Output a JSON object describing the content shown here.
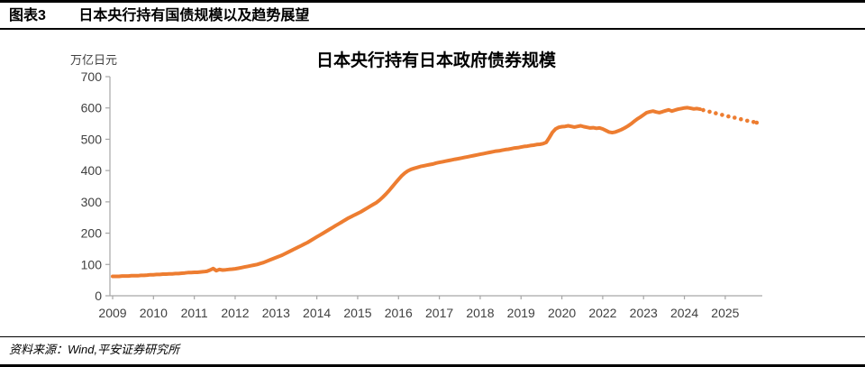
{
  "header": {
    "tag": "图表3",
    "title": "日本央行持有国债规模以及趋势展望"
  },
  "footer": {
    "source": "资料来源：Wind,平安证券研究所"
  },
  "chart_data": {
    "type": "line",
    "title": "日本央行持有日本政府债券规模",
    "y_axis_unit": "万亿日元",
    "ylim": [
      0,
      700
    ],
    "y_tick_values": [
      0,
      100,
      200,
      300,
      400,
      500,
      600,
      700
    ],
    "y_tick_labels": [
      "0",
      "100",
      "200",
      "300",
      "400",
      "500",
      "600",
      "700"
    ],
    "x_tick_labels": [
      "2009",
      "2010",
      "2011",
      "2012",
      "2013",
      "2014",
      "2015",
      "2016",
      "2017",
      "2018",
      "2019",
      "2020",
      "2022",
      "2023",
      "2024",
      "2025"
    ],
    "grid": false,
    "legend": "none",
    "line_color": "#ED7D31",
    "axis_color": "#A6A6A6",
    "label_color": "#404040",
    "title_color": "#000000",
    "series": [
      {
        "id": "boj-jgb-holdings-actual",
        "style": "solid",
        "start_index": 0,
        "values": [
          62,
          62,
          62,
          63,
          63,
          63,
          64,
          64,
          64,
          65,
          65,
          66,
          67,
          67,
          68,
          68,
          69,
          69,
          70,
          70,
          71,
          71,
          72,
          73,
          74,
          74,
          75,
          75,
          76,
          77,
          78,
          82,
          87,
          80,
          84,
          82,
          83,
          84,
          85,
          86,
          88,
          90,
          92,
          94,
          96,
          98,
          100,
          103,
          106,
          110,
          114,
          118,
          122,
          126,
          130,
          135,
          140,
          145,
          150,
          155,
          160,
          165,
          170,
          176,
          182,
          188,
          194,
          200,
          206,
          212,
          218,
          224,
          230,
          236,
          242,
          248,
          253,
          258,
          263,
          268,
          274,
          280,
          286,
          292,
          298,
          306,
          315,
          325,
          336,
          348,
          360,
          372,
          383,
          392,
          399,
          404,
          407,
          410,
          413,
          415,
          417,
          419,
          421,
          424,
          426,
          428,
          430,
          432,
          434,
          436,
          438,
          440,
          442,
          444,
          446,
          448,
          450,
          452,
          454,
          456,
          458,
          460,
          462,
          463,
          465,
          467,
          468,
          470,
          472,
          473,
          475,
          477,
          478,
          480,
          481,
          483,
          484,
          486,
          490,
          505,
          522,
          533,
          538,
          540,
          541,
          543,
          541,
          539,
          541,
          543,
          540,
          538,
          536,
          537,
          535,
          536,
          533,
          528,
          523,
          521,
          523,
          527,
          531,
          536,
          542,
          549,
          557,
          565,
          571,
          578,
          585,
          588,
          590,
          587,
          585,
          588,
          591,
          594,
          590,
          593,
          596,
          598,
          600,
          601,
          599,
          597,
          598,
          596
        ]
      },
      {
        "id": "boj-jgb-holdings-outlook",
        "style": "dotted",
        "start_index": 188,
        "values": [
          593,
          591,
          588,
          586,
          583,
          581,
          578,
          576,
          573,
          571,
          569,
          566,
          564,
          562,
          559,
          557,
          555,
          553
        ]
      }
    ]
  }
}
